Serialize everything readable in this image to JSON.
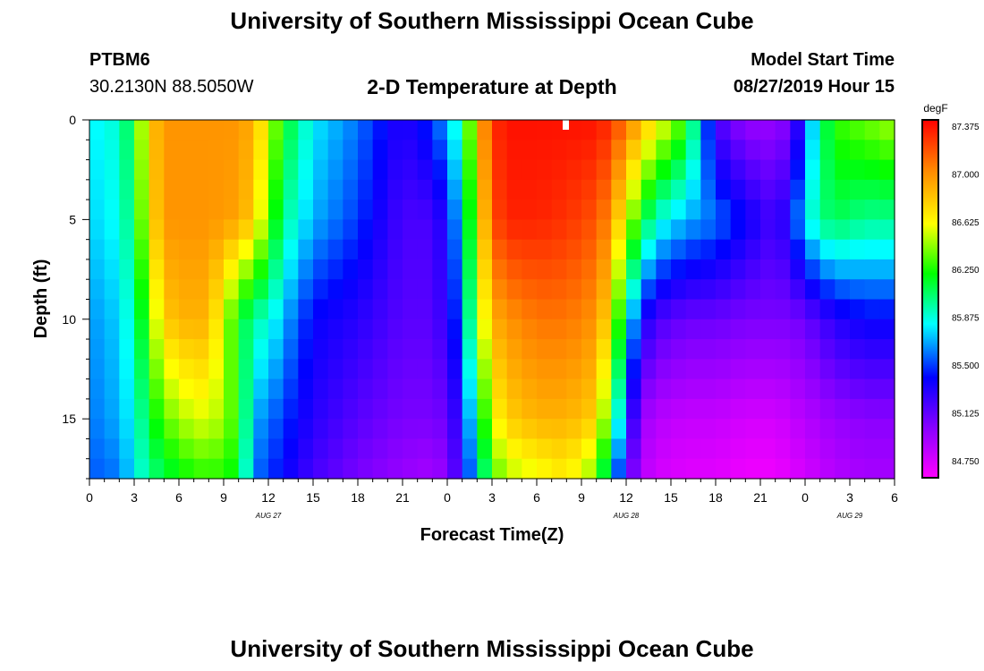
{
  "header": {
    "title_top": "University of Southern Mississippi Ocean Cube",
    "title_bottom": "University of Southern Mississippi Ocean Cube",
    "station_id": "PTBM6",
    "station_coords": "30.2130N 88.5050W",
    "plot_title": "2-D Temperature at Depth",
    "model_start_label": "Model Start Time",
    "model_start_value": "08/27/2019 Hour 15"
  },
  "chart_data": {
    "type": "heatmap",
    "title": "2-D Temperature at Depth",
    "xlabel": "Forecast Time(Z)",
    "ylabel": "Depth (ft)",
    "x_range_hours": [
      0,
      54
    ],
    "y_range_ft": [
      0,
      18
    ],
    "x_ticks": [
      {
        "h": 0,
        "label": "0"
      },
      {
        "h": 3,
        "label": "3"
      },
      {
        "h": 6,
        "label": "6"
      },
      {
        "h": 9,
        "label": "9"
      },
      {
        "h": 12,
        "label": "12"
      },
      {
        "h": 15,
        "label": "15"
      },
      {
        "h": 18,
        "label": "18"
      },
      {
        "h": 21,
        "label": "21"
      },
      {
        "h": 24,
        "label": "0"
      },
      {
        "h": 27,
        "label": "3"
      },
      {
        "h": 30,
        "label": "6"
      },
      {
        "h": 33,
        "label": "9"
      },
      {
        "h": 36,
        "label": "12"
      },
      {
        "h": 39,
        "label": "15"
      },
      {
        "h": 42,
        "label": "18"
      },
      {
        "h": 45,
        "label": "21"
      },
      {
        "h": 48,
        "label": "0"
      },
      {
        "h": 51,
        "label": "3"
      },
      {
        "h": 54,
        "label": "6"
      }
    ],
    "date_labels": [
      {
        "h": 12,
        "label": "AUG 27"
      },
      {
        "h": 36,
        "label": "AUG 28"
      },
      {
        "h": 51,
        "label": "AUG 29"
      }
    ],
    "y_ticks": [
      {
        "d": 0,
        "label": "0"
      },
      {
        "d": 5,
        "label": "5"
      },
      {
        "d": 10,
        "label": "10"
      },
      {
        "d": 15,
        "label": "15"
      }
    ],
    "colorbar": {
      "unit": "degF",
      "min": 84.6,
      "max": 87.45,
      "labels": [
        "87.375",
        "87.000",
        "86.625",
        "86.250",
        "85.875",
        "85.500",
        "85.125",
        "84.750"
      ]
    },
    "profile_hours": [
      0,
      2,
      3,
      4,
      5,
      6,
      8,
      10,
      11,
      12,
      13,
      15,
      18,
      21,
      23,
      24,
      25,
      26,
      27,
      28,
      30,
      32,
      34,
      35,
      36,
      37,
      38,
      40,
      42,
      44,
      46,
      47,
      48,
      49,
      50,
      52,
      54
    ],
    "profile_depths_ft": [
      0,
      5,
      10,
      15,
      18
    ],
    "temps_degF": [
      [
        85.8,
        85.75,
        85.65,
        85.6,
        85.55
      ],
      [
        85.9,
        85.85,
        85.75,
        85.7,
        85.6
      ],
      [
        86.2,
        86.1,
        85.95,
        85.85,
        85.8
      ],
      [
        86.8,
        86.7,
        86.4,
        86.15,
        86.0
      ],
      [
        87.0,
        87.0,
        86.8,
        86.35,
        86.1
      ],
      [
        87.0,
        87.0,
        86.9,
        86.5,
        86.2
      ],
      [
        87.0,
        87.0,
        86.9,
        86.6,
        86.3
      ],
      [
        87.0,
        86.95,
        86.2,
        86.3,
        86.2
      ],
      [
        86.9,
        86.8,
        85.95,
        85.7,
        85.6
      ],
      [
        86.6,
        86.4,
        85.9,
        85.6,
        85.5
      ],
      [
        86.2,
        86.0,
        85.7,
        85.5,
        85.4
      ],
      [
        85.8,
        85.7,
        85.4,
        85.3,
        85.2
      ],
      [
        85.6,
        85.5,
        85.3,
        85.15,
        85.05
      ],
      [
        85.3,
        85.2,
        85.15,
        85.05,
        84.95
      ],
      [
        85.5,
        85.2,
        85.15,
        85.05,
        84.9
      ],
      [
        85.7,
        85.4,
        85.3,
        85.1,
        85.0
      ],
      [
        86.0,
        85.8,
        85.6,
        85.4,
        85.3
      ],
      [
        86.8,
        86.6,
        86.4,
        86.0,
        85.8
      ],
      [
        87.3,
        87.2,
        86.9,
        86.6,
        86.3
      ],
      [
        87.4,
        87.35,
        87.0,
        86.8,
        86.5
      ],
      [
        87.4,
        87.35,
        87.1,
        86.9,
        86.6
      ],
      [
        87.4,
        87.3,
        87.1,
        86.9,
        86.7
      ],
      [
        87.4,
        87.2,
        87.0,
        86.8,
        86.4
      ],
      [
        87.3,
        87.0,
        86.7,
        86.2,
        85.8
      ],
      [
        87.1,
        86.6,
        85.9,
        85.5,
        85.2
      ],
      [
        86.9,
        86.2,
        85.4,
        84.95,
        84.85
      ],
      [
        86.7,
        85.9,
        85.2,
        84.85,
        84.75
      ],
      [
        86.3,
        85.7,
        85.1,
        84.8,
        84.7
      ],
      [
        85.2,
        85.6,
        85.1,
        84.8,
        84.7
      ],
      [
        84.95,
        85.4,
        85.05,
        84.75,
        84.65
      ],
      [
        84.95,
        85.2,
        85.05,
        84.75,
        84.65
      ],
      [
        85.05,
        85.4,
        85.05,
        84.8,
        84.7
      ],
      [
        85.5,
        85.8,
        85.1,
        84.85,
        84.75
      ],
      [
        86.0,
        86.0,
        85.2,
        84.9,
        84.8
      ],
      [
        86.3,
        86.1,
        85.3,
        84.95,
        84.85
      ],
      [
        86.4,
        86.0,
        85.4,
        85.0,
        84.9
      ],
      [
        86.5,
        86.0,
        85.4,
        85.0,
        84.9
      ]
    ]
  }
}
